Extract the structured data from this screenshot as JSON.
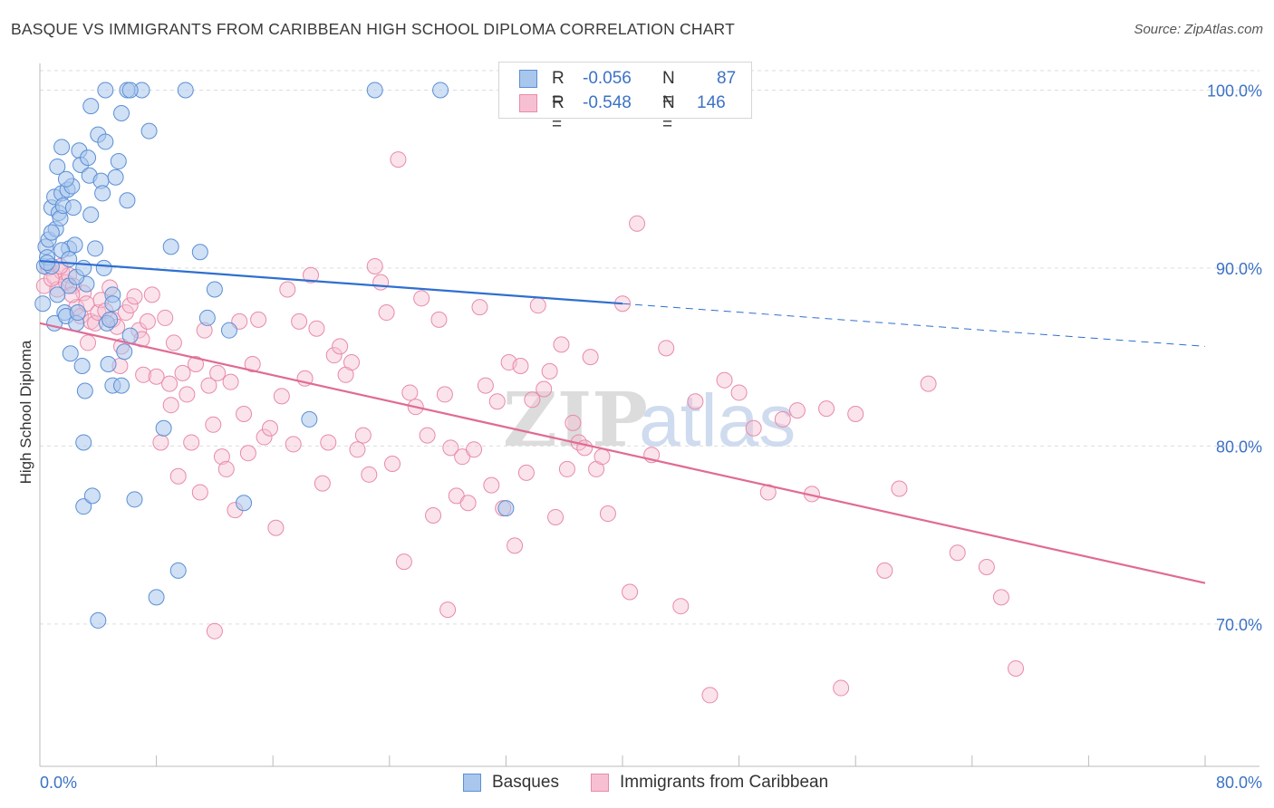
{
  "title": "BASQUE VS IMMIGRANTS FROM CARIBBEAN HIGH SCHOOL DIPLOMA CORRELATION CHART",
  "source": "Source: ZipAtlas.com",
  "watermark": {
    "zip": "ZIP",
    "atlas": "atlas"
  },
  "colors": {
    "basques_fill": "#a9c6ec",
    "basques_stroke": "#5b8fd4",
    "basques_line": "#2f6fcf",
    "caribbean_fill": "#f7c0d2",
    "caribbean_stroke": "#e88aa9",
    "caribbean_line": "#e06b95",
    "axis_label": "#3c72c5",
    "grid": "#dddddd"
  },
  "legend": {
    "rows": [
      {
        "r_label": "R =",
        "r_value": "-0.056",
        "n_label": "N =",
        "n_value": "87"
      },
      {
        "r_label": "R =",
        "r_value": "-0.548",
        "n_label": "N =",
        "n_value": "146"
      }
    ]
  },
  "bottom_legend": {
    "basques": "Basques",
    "caribbean": "Immigrants from Caribbean"
  },
  "chart_data": {
    "type": "scatter",
    "title": "BASQUE VS IMMIGRANTS FROM CARIBBEAN HIGH SCHOOL DIPLOMA CORRELATION CHART",
    "xlabel": "",
    "ylabel": "High School Diploma",
    "xlim": [
      0,
      80
    ],
    "ylim": [
      62,
      101.5
    ],
    "x_tick_labels": [
      "0.0%",
      "80.0%"
    ],
    "y_ticks": [
      70,
      80,
      90,
      100
    ],
    "y_tick_labels": [
      "70.0%",
      "80.0%",
      "90.0%",
      "100.0%"
    ],
    "grid": true,
    "legend_position": "top-center",
    "series": [
      {
        "name": "Basques",
        "r": -0.056,
        "n": 87,
        "trend": {
          "x": [
            0,
            40
          ],
          "y": [
            90.4,
            88.0
          ],
          "dashed_to_x": 80,
          "dashed_end_y": 85.6
        },
        "points": [
          [
            0.2,
            88.0
          ],
          [
            0.3,
            90.1
          ],
          [
            0.4,
            91.2
          ],
          [
            0.5,
            90.6
          ],
          [
            0.6,
            91.6
          ],
          [
            0.8,
            93.4
          ],
          [
            0.8,
            90.1
          ],
          [
            1.0,
            86.9
          ],
          [
            1.0,
            94.0
          ],
          [
            1.1,
            92.2
          ],
          [
            1.2,
            95.7
          ],
          [
            1.3,
            93.1
          ],
          [
            1.4,
            92.8
          ],
          [
            1.5,
            94.2
          ],
          [
            1.5,
            96.8
          ],
          [
            1.6,
            93.5
          ],
          [
            1.7,
            87.5
          ],
          [
            1.8,
            87.3
          ],
          [
            1.9,
            94.4
          ],
          [
            2.0,
            89.0
          ],
          [
            2.0,
            91.1
          ],
          [
            2.1,
            85.2
          ],
          [
            2.2,
            94.6
          ],
          [
            2.3,
            93.4
          ],
          [
            2.4,
            91.3
          ],
          [
            2.5,
            86.9
          ],
          [
            2.6,
            87.5
          ],
          [
            2.7,
            96.6
          ],
          [
            2.8,
            95.8
          ],
          [
            2.9,
            84.5
          ],
          [
            3.0,
            80.2
          ],
          [
            3.0,
            76.6
          ],
          [
            3.1,
            83.1
          ],
          [
            3.2,
            89.1
          ],
          [
            3.3,
            96.2
          ],
          [
            3.4,
            95.2
          ],
          [
            3.5,
            99.1
          ],
          [
            3.6,
            77.2
          ],
          [
            3.8,
            91.1
          ],
          [
            4.0,
            97.5
          ],
          [
            4.2,
            94.9
          ],
          [
            4.3,
            94.2
          ],
          [
            4.4,
            90.0
          ],
          [
            4.5,
            97.1
          ],
          [
            4.6,
            86.9
          ],
          [
            4.7,
            84.6
          ],
          [
            4.8,
            87.1
          ],
          [
            5.0,
            88.5
          ],
          [
            5.0,
            88.0
          ],
          [
            5.2,
            95.1
          ],
          [
            5.4,
            96.0
          ],
          [
            5.6,
            98.7
          ],
          [
            5.8,
            85.3
          ],
          [
            6.0,
            93.8
          ],
          [
            6.2,
            86.2
          ],
          [
            6.5,
            77.0
          ],
          [
            7.0,
            100.0
          ],
          [
            7.5,
            97.7
          ],
          [
            8.0,
            71.5
          ],
          [
            8.5,
            81.0
          ],
          [
            9.0,
            91.2
          ],
          [
            9.5,
            73.0
          ],
          [
            10.0,
            100.0
          ],
          [
            11.0,
            90.9
          ],
          [
            11.5,
            87.2
          ],
          [
            12.0,
            88.8
          ],
          [
            13.0,
            86.5
          ],
          [
            14.0,
            76.8
          ],
          [
            18.5,
            81.5
          ],
          [
            23.0,
            100.0
          ],
          [
            27.5,
            100.0
          ],
          [
            32.0,
            76.5
          ],
          [
            4.5,
            100.0
          ],
          [
            6.0,
            100.0
          ],
          [
            5.0,
            83.4
          ],
          [
            4.0,
            70.2
          ],
          [
            1.5,
            91.0
          ],
          [
            2.5,
            89.5
          ],
          [
            0.5,
            90.3
          ],
          [
            3.0,
            90.0
          ],
          [
            3.5,
            93.0
          ],
          [
            1.2,
            88.5
          ],
          [
            2.0,
            90.5
          ],
          [
            0.8,
            92.0
          ],
          [
            1.8,
            95.0
          ],
          [
            6.2,
            100.0
          ],
          [
            5.6,
            83.4
          ]
        ]
      },
      {
        "name": "Immigrants from Caribbean",
        "r": -0.548,
        "n": 146,
        "trend": {
          "x": [
            0,
            80
          ],
          "y": [
            86.9,
            72.3
          ]
        },
        "points": [
          [
            0.3,
            89.0
          ],
          [
            0.6,
            90.0
          ],
          [
            1.0,
            89.5
          ],
          [
            1.2,
            88.8
          ],
          [
            1.5,
            89.8
          ],
          [
            1.8,
            89.2
          ],
          [
            2.0,
            89.6
          ],
          [
            2.3,
            89.0
          ],
          [
            2.5,
            87.8
          ],
          [
            2.8,
            87.3
          ],
          [
            3.0,
            88.6
          ],
          [
            3.2,
            88.0
          ],
          [
            3.5,
            87.0
          ],
          [
            3.8,
            86.9
          ],
          [
            4.0,
            87.5
          ],
          [
            4.2,
            88.2
          ],
          [
            4.5,
            87.6
          ],
          [
            4.8,
            88.9
          ],
          [
            5.0,
            87.1
          ],
          [
            5.3,
            86.7
          ],
          [
            5.6,
            85.6
          ],
          [
            5.9,
            87.5
          ],
          [
            6.2,
            87.9
          ],
          [
            6.5,
            88.4
          ],
          [
            6.8,
            86.5
          ],
          [
            7.1,
            84.0
          ],
          [
            7.4,
            87.0
          ],
          [
            7.7,
            88.5
          ],
          [
            8.0,
            83.9
          ],
          [
            8.3,
            80.2
          ],
          [
            8.6,
            87.2
          ],
          [
            8.9,
            83.5
          ],
          [
            9.2,
            85.8
          ],
          [
            9.5,
            78.3
          ],
          [
            9.8,
            84.1
          ],
          [
            10.1,
            82.9
          ],
          [
            10.4,
            80.2
          ],
          [
            10.7,
            84.6
          ],
          [
            11.0,
            77.4
          ],
          [
            11.3,
            86.5
          ],
          [
            11.6,
            83.4
          ],
          [
            11.9,
            81.2
          ],
          [
            12.2,
            84.1
          ],
          [
            12.5,
            79.4
          ],
          [
            12.8,
            78.7
          ],
          [
            13.1,
            83.6
          ],
          [
            13.4,
            76.4
          ],
          [
            13.7,
            87.0
          ],
          [
            14.0,
            81.8
          ],
          [
            14.3,
            79.6
          ],
          [
            14.6,
            84.6
          ],
          [
            15.0,
            87.1
          ],
          [
            15.4,
            80.5
          ],
          [
            15.8,
            81.0
          ],
          [
            16.2,
            75.4
          ],
          [
            16.6,
            82.8
          ],
          [
            17.0,
            88.8
          ],
          [
            17.4,
            80.1
          ],
          [
            17.8,
            87.0
          ],
          [
            18.2,
            83.8
          ],
          [
            18.6,
            89.6
          ],
          [
            19.0,
            86.6
          ],
          [
            19.4,
            77.9
          ],
          [
            19.8,
            80.2
          ],
          [
            20.2,
            85.1
          ],
          [
            20.6,
            85.6
          ],
          [
            21.0,
            84.0
          ],
          [
            21.4,
            84.7
          ],
          [
            21.8,
            79.8
          ],
          [
            22.2,
            80.6
          ],
          [
            22.6,
            78.4
          ],
          [
            23.0,
            90.1
          ],
          [
            23.4,
            89.2
          ],
          [
            23.8,
            87.5
          ],
          [
            24.2,
            79.0
          ],
          [
            24.6,
            96.1
          ],
          [
            25.0,
            73.5
          ],
          [
            25.4,
            83.0
          ],
          [
            25.8,
            82.2
          ],
          [
            26.2,
            88.3
          ],
          [
            26.6,
            80.6
          ],
          [
            27.0,
            76.1
          ],
          [
            27.4,
            87.1
          ],
          [
            27.8,
            82.9
          ],
          [
            28.2,
            79.9
          ],
          [
            28.6,
            77.2
          ],
          [
            29.0,
            79.4
          ],
          [
            29.4,
            76.8
          ],
          [
            29.8,
            79.8
          ],
          [
            30.2,
            87.8
          ],
          [
            30.6,
            83.4
          ],
          [
            31.0,
            77.8
          ],
          [
            31.4,
            82.5
          ],
          [
            31.8,
            76.5
          ],
          [
            32.2,
            84.7
          ],
          [
            32.6,
            74.4
          ],
          [
            33.0,
            84.5
          ],
          [
            33.4,
            78.5
          ],
          [
            33.8,
            82.6
          ],
          [
            34.2,
            87.9
          ],
          [
            34.6,
            83.2
          ],
          [
            35.0,
            84.2
          ],
          [
            35.4,
            76.0
          ],
          [
            35.8,
            85.7
          ],
          [
            36.2,
            78.7
          ],
          [
            36.6,
            81.3
          ],
          [
            37.0,
            80.2
          ],
          [
            37.4,
            79.9
          ],
          [
            37.8,
            85.0
          ],
          [
            38.2,
            78.7
          ],
          [
            38.6,
            79.4
          ],
          [
            39.0,
            76.2
          ],
          [
            40.0,
            88.0
          ],
          [
            41.0,
            92.5
          ],
          [
            42.0,
            79.5
          ],
          [
            43.0,
            85.5
          ],
          [
            44.0,
            71.0
          ],
          [
            45.0,
            82.5
          ],
          [
            46.0,
            66.0
          ],
          [
            47.0,
            83.7
          ],
          [
            48.0,
            83.0
          ],
          [
            49.0,
            81.0
          ],
          [
            50.0,
            77.4
          ],
          [
            51.0,
            81.5
          ],
          [
            52.0,
            82.0
          ],
          [
            53.0,
            77.3
          ],
          [
            54.0,
            82.1
          ],
          [
            55.0,
            66.4
          ],
          [
            56.0,
            81.8
          ],
          [
            58.0,
            73.0
          ],
          [
            59.0,
            77.6
          ],
          [
            61.0,
            83.5
          ],
          [
            63.0,
            74.0
          ],
          [
            65.0,
            73.2
          ],
          [
            66.0,
            71.5
          ],
          [
            67.0,
            67.5
          ],
          [
            40.5,
            71.8
          ],
          [
            12.0,
            69.6
          ],
          [
            28.0,
            70.8
          ],
          [
            5.5,
            84.5
          ],
          [
            3.3,
            85.8
          ],
          [
            7.0,
            86.0
          ],
          [
            9.0,
            82.3
          ],
          [
            0.8,
            89.4
          ],
          [
            1.4,
            90.1
          ],
          [
            2.2,
            88.5
          ]
        ]
      }
    ]
  }
}
